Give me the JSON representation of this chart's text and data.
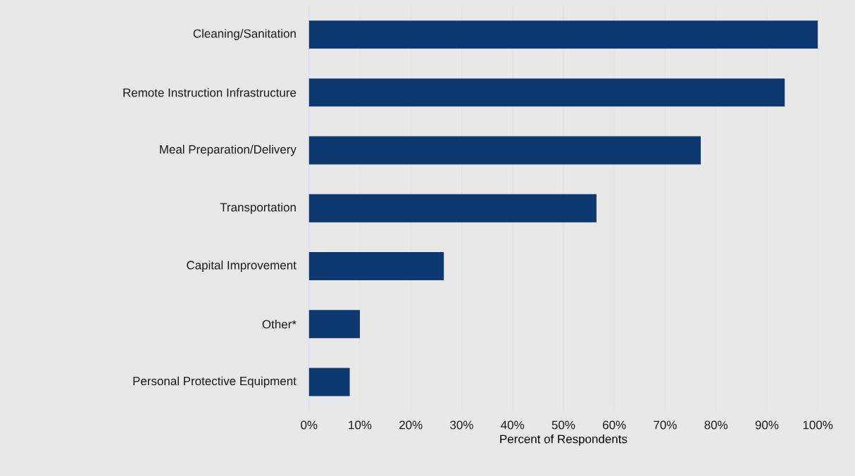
{
  "chart_data": {
    "type": "bar",
    "orientation": "horizontal",
    "xlabel": "Percent of Respondents",
    "categories": [
      "Cleaning/Sanitation",
      "Remote Instruction Infrastructure",
      "Meal Preparation/Delivery",
      "Transportation",
      "Capital Improvement",
      "Other*",
      "Personal Protective Equipment"
    ],
    "values": [
      100,
      93.5,
      77,
      56.5,
      26.5,
      10,
      8
    ],
    "color": "#0d3970",
    "xlim": [
      0,
      100
    ],
    "xticks": [
      {
        "value": 0,
        "label": "0%"
      },
      {
        "value": 10,
        "label": "10%"
      },
      {
        "value": 20,
        "label": "20%"
      },
      {
        "value": 30,
        "label": "30%"
      },
      {
        "value": 40,
        "label": "40%"
      },
      {
        "value": 50,
        "label": "50%"
      },
      {
        "value": 60,
        "label": "60%"
      },
      {
        "value": 70,
        "label": "70%"
      },
      {
        "value": 80,
        "label": "80%"
      },
      {
        "value": 90,
        "label": "90%"
      },
      {
        "value": 100,
        "label": "100%"
      }
    ],
    "grid": "x"
  }
}
